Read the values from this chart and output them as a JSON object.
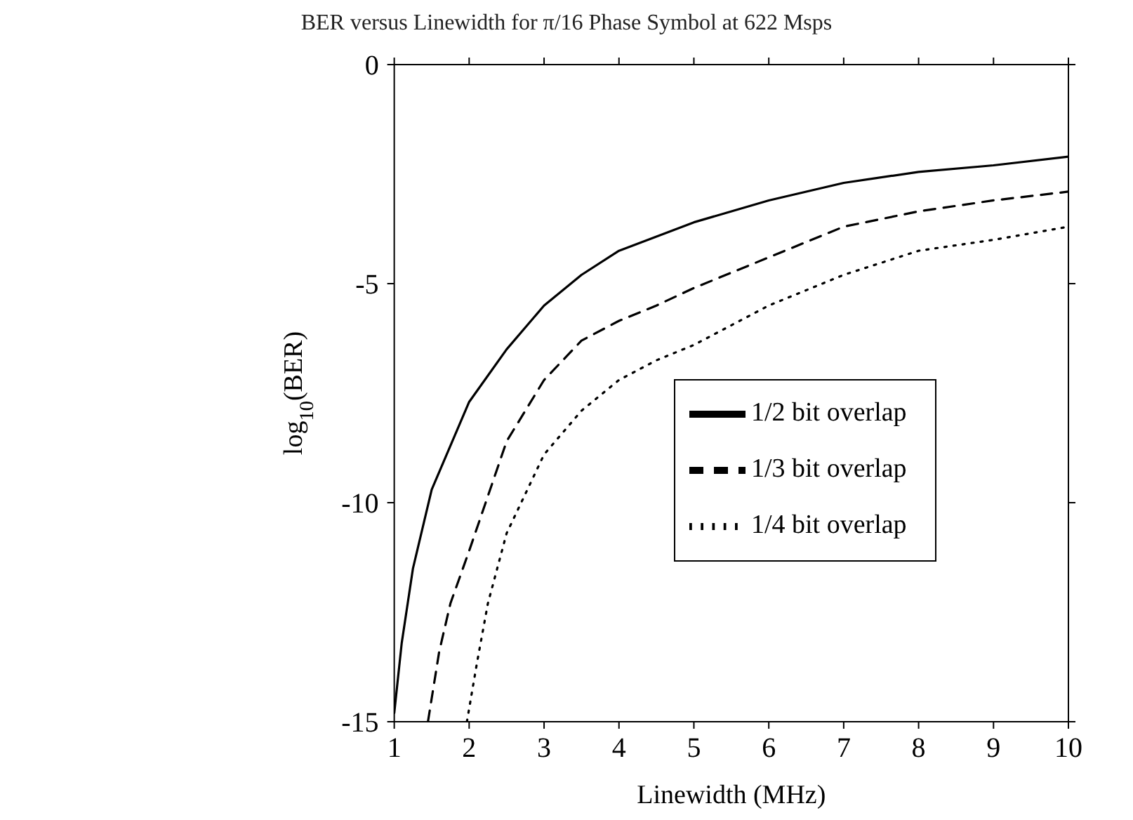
{
  "chart_data": {
    "type": "line",
    "title": "BER versus Linewidth for π/16 Phase Symbol at 622 Msps",
    "xlabel": "Linewidth (MHz)",
    "ylabel": "log$_{10}$(BER)",
    "xlim": [
      1,
      10
    ],
    "xticks": [
      1,
      2,
      3,
      4,
      5,
      6,
      7,
      8,
      9,
      10
    ],
    "ylim": [
      -15,
      0
    ],
    "yticks": [
      -15,
      -10,
      -5,
      0
    ],
    "grid": false,
    "legend": "right",
    "marker": "none",
    "series": [
      {
        "name": "1/2 bit overlap",
        "color": "#000000",
        "line_style": "solid",
        "x": [
          1,
          1.1,
          1.25,
          1.5,
          2,
          2.5,
          3,
          3.5,
          4,
          5,
          6,
          7,
          8,
          9,
          10
        ],
        "values": [
          -14.8,
          -13.2,
          -11.5,
          -9.7,
          -7.7,
          -6.5,
          -5.5,
          -4.8,
          -4.25,
          -3.6,
          -3.1,
          -2.7,
          -2.45,
          -2.3,
          -2.1
        ]
      },
      {
        "name": "1/3 bit overlap",
        "color": "#000000",
        "line_style": "dashed",
        "x": [
          1.45,
          1.6,
          1.75,
          2,
          2.5,
          3,
          3.5,
          4,
          4.5,
          5,
          6,
          7,
          8,
          9,
          10
        ],
        "values": [
          -15,
          -13.4,
          -12.3,
          -11.1,
          -8.6,
          -7.2,
          -6.3,
          -5.85,
          -5.5,
          -5.1,
          -4.4,
          -3.7,
          -3.35,
          -3.1,
          -2.9
        ]
      },
      {
        "name": "1/4 bit overlap",
        "color": "#000000",
        "line_style": "dotted",
        "x": [
          1.97,
          2.1,
          2.25,
          2.5,
          3,
          3.5,
          4,
          4.5,
          5,
          6,
          7,
          8,
          9,
          10
        ],
        "values": [
          -15,
          -13.7,
          -12.3,
          -10.7,
          -8.9,
          -7.9,
          -7.2,
          -6.75,
          -6.4,
          -5.5,
          -4.8,
          -4.25,
          -4.0,
          -3.7
        ]
      }
    ]
  }
}
